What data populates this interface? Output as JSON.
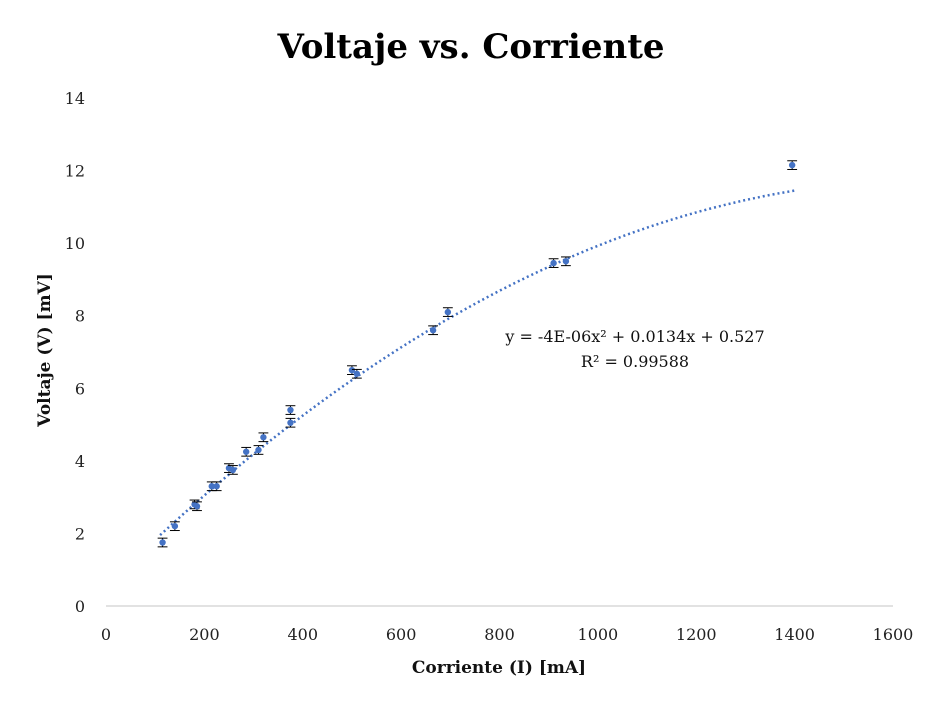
{
  "chart_data": {
    "type": "scatter",
    "title": "Voltaje vs. Corriente",
    "xlabel": "Corriente (I) [mA]",
    "ylabel": "Voltaje (V) [mV]",
    "xlim": [
      0,
      1600
    ],
    "ylim": [
      0,
      14
    ],
    "x_ticks": [
      0,
      200,
      400,
      600,
      800,
      1000,
      1200,
      1400,
      1600
    ],
    "y_ticks": [
      0,
      2,
      4,
      6,
      8,
      10,
      12,
      14
    ],
    "grid": false,
    "legend": "none",
    "series": [
      {
        "color": "#4472C4",
        "error_y": 0.12,
        "error_x": 10,
        "points": [
          {
            "x": 115,
            "y": 1.75
          },
          {
            "x": 140,
            "y": 2.2
          },
          {
            "x": 180,
            "y": 2.8
          },
          {
            "x": 185,
            "y": 2.75
          },
          {
            "x": 215,
            "y": 3.3
          },
          {
            "x": 225,
            "y": 3.3
          },
          {
            "x": 250,
            "y": 3.8
          },
          {
            "x": 258,
            "y": 3.75
          },
          {
            "x": 285,
            "y": 4.25
          },
          {
            "x": 310,
            "y": 4.3
          },
          {
            "x": 320,
            "y": 4.65
          },
          {
            "x": 375,
            "y": 5.4
          },
          {
            "x": 375,
            "y": 5.05
          },
          {
            "x": 500,
            "y": 6.5
          },
          {
            "x": 510,
            "y": 6.4
          },
          {
            "x": 665,
            "y": 7.6
          },
          {
            "x": 695,
            "y": 8.1
          },
          {
            "x": 910,
            "y": 9.45
          },
          {
            "x": 935,
            "y": 9.5
          },
          {
            "x": 1395,
            "y": 12.15
          }
        ]
      }
    ],
    "trendline": {
      "type": "polynomial",
      "coefficients": {
        "a": -4e-06,
        "b": 0.0134,
        "c": 0.527
      },
      "x_range": [
        110,
        1400
      ],
      "equation": "y = -4E-06x² + 0.0134x + 0.527",
      "r_squared": "R² = 0.99588"
    }
  }
}
